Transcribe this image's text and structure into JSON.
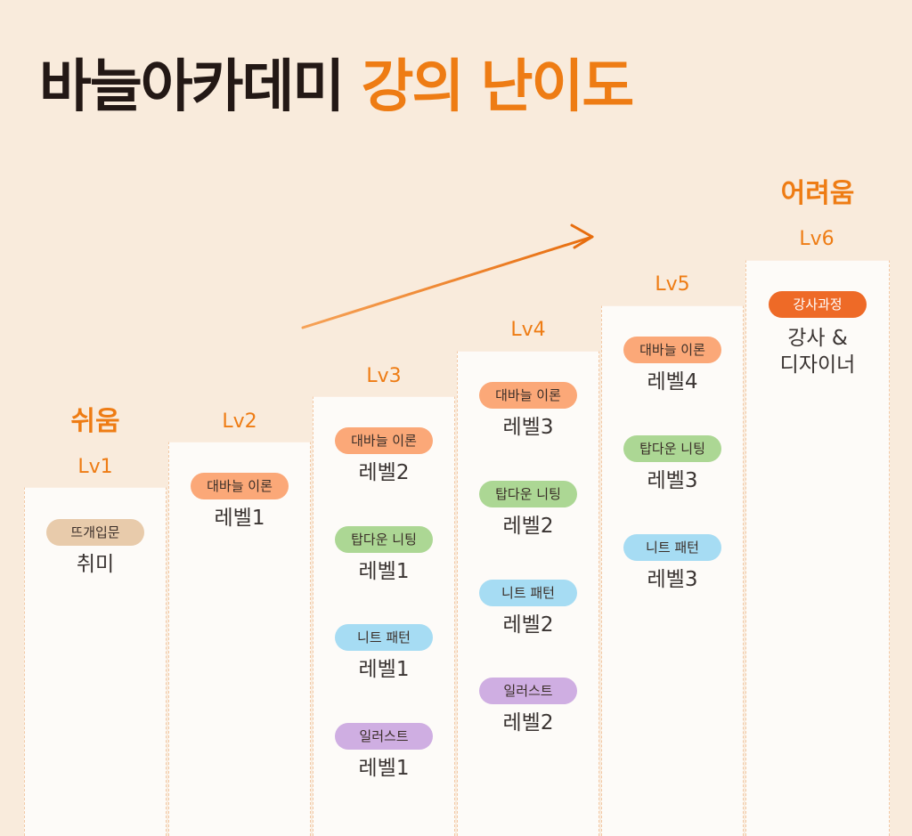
{
  "title": {
    "part1": "바늘아카데미",
    "part2": "강의 난이도"
  },
  "difficulty": {
    "easy": "쉬움",
    "hard": "어려움"
  },
  "levels": [
    {
      "label": "Lv1",
      "items": [
        {
          "tag": "뜨개입문",
          "value": "취미"
        }
      ]
    },
    {
      "label": "Lv2",
      "items": [
        {
          "tag": "대바늘 이론",
          "value": "레벨1"
        }
      ]
    },
    {
      "label": "Lv3",
      "items": [
        {
          "tag": "대바늘 이론",
          "value": "레벨2"
        },
        {
          "tag": "탑다운 니팅",
          "value": "레벨1"
        },
        {
          "tag": "니트 패턴",
          "value": "레벨1"
        },
        {
          "tag": "일러스트",
          "value": "레벨1"
        }
      ]
    },
    {
      "label": "Lv4",
      "items": [
        {
          "tag": "대바늘 이론",
          "value": "레벨3"
        },
        {
          "tag": "탑다운 니팅",
          "value": "레벨2"
        },
        {
          "tag": "니트 패턴",
          "value": "레벨2"
        },
        {
          "tag": "일러스트",
          "value": "레벨2"
        }
      ]
    },
    {
      "label": "Lv5",
      "items": [
        {
          "tag": "대바늘 이론",
          "value": "레벨4"
        },
        {
          "tag": "탑다운 니팅",
          "value": "레벨3"
        },
        {
          "tag": "니트 패턴",
          "value": "레벨3"
        }
      ]
    },
    {
      "label": "Lv6",
      "items": [
        {
          "tag": "강사과정",
          "value": "강사 &\n디자이너"
        }
      ]
    }
  ],
  "colors": {
    "accent": "#ee7c14",
    "theory": "#fba878",
    "topdown": "#acd794",
    "pattern": "#a6dcf3",
    "illust": "#cfaee2",
    "basic": "#e8cbab",
    "instructor": "#ee6a27"
  }
}
